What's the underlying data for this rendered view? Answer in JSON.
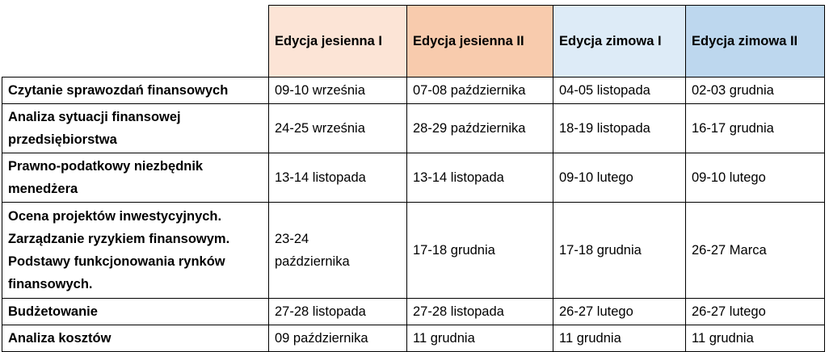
{
  "table": {
    "headers": [
      "Edycja jesienna I",
      "Edycja jesienna II",
      "Edycja zimowa I",
      "Edycja zimowa II"
    ],
    "rows": [
      [
        "Czytanie sprawozdań finansowych",
        "09-10 września",
        "07-08 października",
        "04-05 listopada",
        "02-03 grudnia"
      ],
      [
        "Analiza sytuacji finansowej przedsiębiorstwa",
        "24-25 września",
        "28-29 października",
        "18-19 listopada",
        "16-17 grudnia"
      ],
      [
        "Prawno-podatkowy niezbędnik menedżera",
        "13-14 listopada",
        "13-14 listopada",
        "09-10 lutego",
        "09-10 lutego"
      ],
      [
        "Ocena projektów inwestycyjnych. Zarządzanie ryzykiem finansowym. Podstawy funkcjonowania rynków finansowych.",
        "23-24 października",
        "17-18 grudnia",
        "17-18 grudnia",
        "26-27 Marca"
      ],
      [
        "Budżetowanie",
        "27-28 listopada",
        "27-28 listopada",
        "26-27 lutego",
        "26-27 lutego"
      ],
      [
        "Analiza kosztów",
        "09 października",
        "11 grudnia",
        "11 grudnia",
        "11 grudnia"
      ]
    ]
  }
}
